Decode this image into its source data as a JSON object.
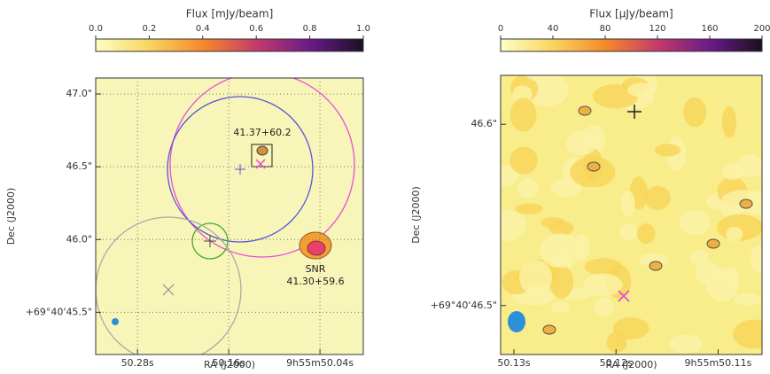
{
  "chart_data": [
    {
      "type": "image",
      "colorbar_label": "Flux [mJy/beam]",
      "colorbar_lim": [
        0,
        1
      ],
      "colorbar_ticks": [
        {
          "value": 0,
          "label": "0.0"
        },
        0.2,
        0.4,
        0.6,
        0.8,
        {
          "value": 1,
          "label": "1.0"
        }
      ],
      "xlabel": "RA (J2000)",
      "ylabel": "Dec (J2000)",
      "xlim": [
        50.335,
        49.983
      ],
      "xticks": [
        {
          "value": 50.28,
          "label": "50.28s"
        },
        {
          "value": 50.16,
          "label": "50.16s"
        },
        {
          "value": 50.04,
          "label": "9h55m50.04s"
        }
      ],
      "ylim": [
        45.21,
        47.11
      ],
      "yticks": [
        {
          "value": 47.0,
          "label": "47.0\""
        },
        {
          "value": 46.5,
          "label": "46.5\""
        },
        {
          "value": 46.0,
          "label": "46.0\""
        },
        {
          "value": 45.5,
          "label": "+69°40'45.5\""
        }
      ],
      "grid": true,
      "annotations": [
        "41.37+60.2",
        "SNR",
        "41.30+59.6"
      ]
    },
    {
      "type": "image",
      "colorbar_label": "Flux [μJy/beam]",
      "colorbar_lim": [
        0,
        200
      ],
      "colorbar_ticks": [
        0,
        40,
        80,
        120,
        160,
        200
      ],
      "xlabel": "RA (J2000)",
      "ylabel": "Dec (J2000)",
      "xlim": [
        50.1313,
        50.1057
      ],
      "xticks": [
        {
          "value": 50.13,
          "label": "50.13s"
        },
        {
          "value": 50.12,
          "label": "50.12s"
        },
        {
          "value": 50.11,
          "label": "9h55m50.11s"
        }
      ],
      "ylim": [
        46.473,
        46.627
      ],
      "yticks": [
        {
          "value": 46.6,
          "label": "46.6\""
        },
        {
          "value": 46.5,
          "label": "+69°40'46.5\""
        }
      ],
      "grid": false
    }
  ]
}
